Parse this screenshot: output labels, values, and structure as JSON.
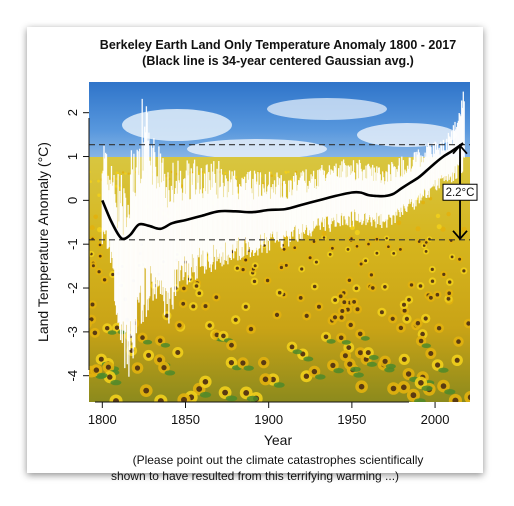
{
  "chart_data": {
    "type": "line",
    "title": "Berkeley Earth Land Only Temperature Anomaly 1800 - 2017",
    "subtitle": "(Black line is 34-year centered Gaussian avg.)",
    "xlabel": "Year",
    "ylabel": "Land Temperature Anomaly (°C)",
    "xlim": [
      1792,
      2021
    ],
    "ylim": [
      -4.6,
      2.7
    ],
    "xticks": [
      "1800",
      "1850",
      "1900",
      "1950",
      "2000"
    ],
    "xtick_values": [
      1800,
      1850,
      1900,
      1950,
      2000
    ],
    "yticks": [
      "-4",
      "-3",
      "-2",
      "-1",
      "0",
      "1",
      "2"
    ],
    "ytick_values": [
      -4,
      -3,
      -2,
      -1,
      0,
      1,
      2
    ],
    "background": "sunflower field under blue sky",
    "series": [
      {
        "role": "gaussian_average",
        "color": "#000000",
        "x": [
          1800,
          1805,
          1810,
          1813,
          1817,
          1822,
          1828,
          1835,
          1842,
          1850,
          1860,
          1870,
          1880,
          1890,
          1900,
          1910,
          1920,
          1930,
          1940,
          1950,
          1955,
          1960,
          1965,
          1970,
          1975,
          1980,
          1985,
          1990,
          1995,
          2000,
          2005,
          2010,
          2015,
          2017
        ],
        "y": [
          0.0,
          -0.45,
          -0.8,
          -0.88,
          -0.78,
          -0.55,
          -0.58,
          -0.65,
          -0.52,
          -0.45,
          -0.35,
          -0.25,
          -0.25,
          -0.27,
          -0.22,
          -0.2,
          -0.1,
          0.0,
          0.1,
          0.18,
          0.18,
          0.12,
          0.1,
          0.1,
          0.15,
          0.28,
          0.4,
          0.52,
          0.68,
          0.85,
          1.0,
          1.12,
          1.25,
          1.3
        ]
      },
      {
        "role": "annual_values",
        "color": "#ffffff",
        "x_start": 1800,
        "x_end": 2017,
        "envelope_x": [
          1800,
          1805,
          1810,
          1815,
          1820,
          1825,
          1830,
          1835,
          1840,
          1845,
          1850,
          1860,
          1870,
          1880,
          1890,
          1900,
          1910,
          1920,
          1930,
          1940,
          1950,
          1960,
          1970,
          1980,
          1990,
          2000,
          2010,
          2017
        ],
        "envelope_low": [
          -1.0,
          -1.6,
          -3.5,
          -4.2,
          -3.4,
          -2.9,
          -2.3,
          -2.4,
          -2.9,
          -2.2,
          -2.0,
          -1.7,
          -1.6,
          -1.4,
          -1.3,
          -1.2,
          -1.1,
          -0.9,
          -0.8,
          -0.7,
          -0.6,
          -0.6,
          -0.7,
          -0.4,
          -0.2,
          0.2,
          0.4,
          0.6
        ],
        "envelope_high": [
          1.4,
          1.0,
          0.6,
          1.1,
          1.7,
          2.6,
          1.6,
          1.2,
          1.1,
          1.0,
          1.0,
          0.9,
          0.9,
          0.8,
          0.7,
          0.7,
          0.6,
          0.7,
          0.8,
          0.9,
          1.0,
          0.9,
          0.8,
          1.0,
          1.2,
          1.4,
          1.6,
          2.5
        ]
      }
    ],
    "reference_lines": [
      {
        "style": "dashed",
        "y": 1.27
      },
      {
        "style": "dashed",
        "y": -0.9
      }
    ],
    "annotations": [
      {
        "text": "2.2°C",
        "x": 2015,
        "y_from": -0.9,
        "y_to": 1.27
      }
    ],
    "footnote_lines": [
      "(Please point out the climate catastrophes scientifically",
      "shown to have resulted from this terrifying warming ...)"
    ],
    "grid": false,
    "legend": "none"
  }
}
